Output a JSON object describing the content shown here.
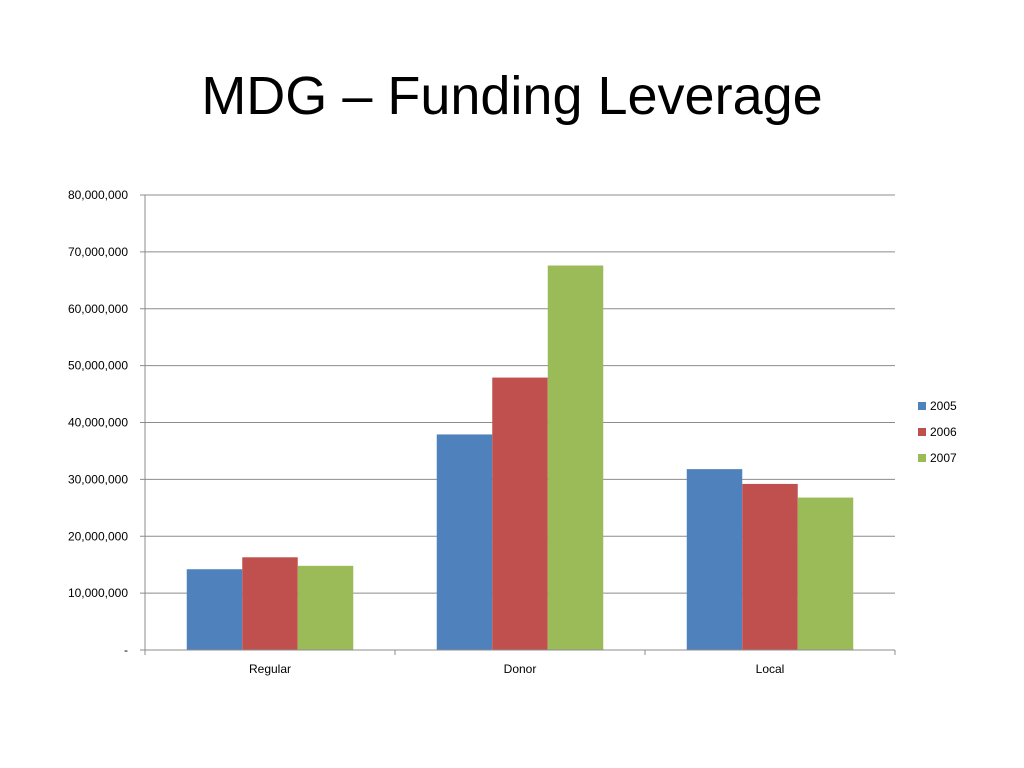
{
  "slide": {
    "title": "MDG – Funding Leverage"
  },
  "chart_data": {
    "type": "bar",
    "title": "",
    "xlabel": "",
    "ylabel": "",
    "categories": [
      "Regular",
      "Donor",
      "Local"
    ],
    "series": [
      {
        "name": "2005",
        "color": "#4F81BD",
        "values": [
          14200000,
          37900000,
          31800000
        ]
      },
      {
        "name": "2006",
        "color": "#C0504D",
        "values": [
          16300000,
          47900000,
          29200000
        ]
      },
      {
        "name": "2007",
        "color": "#9BBB59",
        "values": [
          14800000,
          67600000,
          26800000
        ]
      }
    ],
    "ylim": [
      0,
      80000000
    ],
    "yticks": [
      0,
      10000000,
      20000000,
      30000000,
      40000000,
      50000000,
      60000000,
      70000000,
      80000000
    ],
    "ytick_labels": [
      "-",
      "10,000,000",
      "20,000,000",
      "30,000,000",
      "40,000,000",
      "50,000,000",
      "60,000,000",
      "70,000,000",
      "80,000,000"
    ],
    "grid": true,
    "legend_position": "right"
  }
}
